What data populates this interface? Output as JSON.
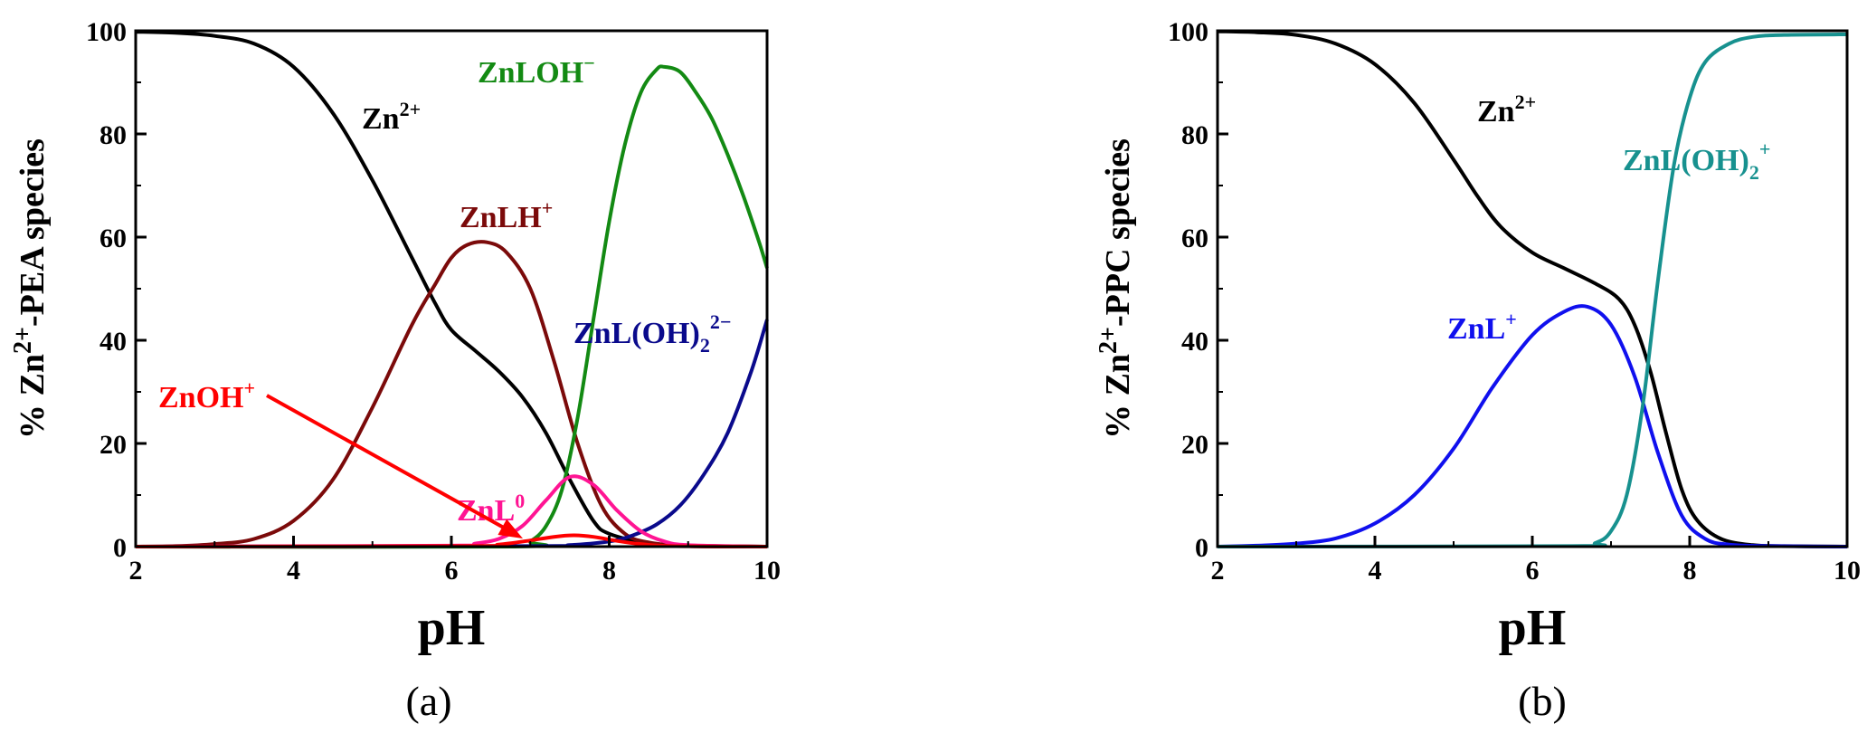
{
  "chart_data": [
    {
      "type": "line",
      "panel_label": "(a)",
      "xlabel": "pH",
      "ylabel_parts": {
        "prefix": "% Zn",
        "sup": "2+",
        "suffix": "-PEA species"
      },
      "xlim": [
        2,
        10
      ],
      "ylim": [
        0,
        100
      ],
      "x_ticks": [
        2,
        4,
        6,
        8,
        10
      ],
      "y_ticks": [
        0,
        20,
        40,
        60,
        80,
        100
      ],
      "grid": false,
      "series": [
        {
          "label_base": "Zn",
          "label_sup": "2+",
          "label_sub": "",
          "color": "#000000",
          "x": [
            2,
            2.5,
            3,
            3.5,
            4,
            4.5,
            5,
            5.5,
            5.8,
            6,
            6.3,
            6.6,
            6.9,
            7.2,
            7.5,
            7.8,
            8,
            8.5,
            9,
            10
          ],
          "y": [
            99.8,
            99.6,
            99,
            97.5,
            93,
            84,
            71,
            56,
            47,
            42,
            38,
            34,
            29,
            22,
            13,
            5,
            2.5,
            0.6,
            0.2,
            0
          ]
        },
        {
          "label_base": "ZnLH",
          "label_sup": "+",
          "label_sub": "",
          "color": "#7b0a0a",
          "x": [
            2,
            2.5,
            3,
            3.5,
            4,
            4.5,
            5,
            5.5,
            5.8,
            6,
            6.2,
            6.45,
            6.7,
            7,
            7.3,
            7.6,
            7.9,
            8.2,
            8.5,
            9,
            10
          ],
          "y": [
            0,
            0.1,
            0.5,
            1.5,
            5,
            13,
            27,
            43,
            51,
            56,
            58.5,
            59,
            57,
            50,
            36,
            20,
            8,
            2.5,
            0.8,
            0.1,
            0
          ]
        },
        {
          "label_base": "ZnLOH",
          "label_sup": "−",
          "label_sub": "",
          "color": "#138a13",
          "x": [
            2,
            6.8,
            7,
            7.2,
            7.4,
            7.6,
            7.8,
            8,
            8.2,
            8.4,
            8.6,
            8.7,
            8.9,
            9.1,
            9.3,
            9.5,
            9.7,
            9.9,
            10
          ],
          "y": [
            0,
            0,
            1,
            4,
            11,
            25,
            44,
            63,
            78,
            88,
            92.5,
            93,
            92,
            88,
            83,
            76,
            68,
            59,
            54
          ]
        },
        {
          "label_base": "ZnL(OH)",
          "label_sup": "2−",
          "label_sub": "2",
          "color": "#0a0a8c",
          "x": [
            2,
            7,
            7.5,
            8,
            8.3,
            8.6,
            8.9,
            9.2,
            9.5,
            9.8,
            10
          ],
          "y": [
            0,
            0.1,
            0.3,
            1,
            2.2,
            4.3,
            8,
            14,
            22,
            34,
            44
          ]
        },
        {
          "label_base": "ZnL",
          "label_sup": "0",
          "label_sub": "",
          "color": "#ff1493",
          "x": [
            2,
            6,
            6.3,
            6.6,
            6.9,
            7.2,
            7.5,
            7.8,
            8.1,
            8.4,
            8.7,
            9,
            10
          ],
          "y": [
            0,
            0.2,
            0.6,
            1.5,
            4,
            9,
            13.5,
            12,
            7,
            3,
            1,
            0.3,
            0
          ]
        },
        {
          "label_base": "ZnOH",
          "label_sup": "+",
          "label_sub": "",
          "color": "#ff0000",
          "x": [
            2,
            6.2,
            6.6,
            7,
            7.3,
            7.55,
            7.8,
            8.1,
            8.4,
            8.8,
            10
          ],
          "y": [
            0,
            0.1,
            0.4,
            1.2,
            1.9,
            2.2,
            1.9,
            1.1,
            0.5,
            0.1,
            0
          ]
        }
      ]
    },
    {
      "type": "line",
      "panel_label": "(b)",
      "xlabel": "pH",
      "ylabel_parts": {
        "prefix": "% Zn",
        "sup": "2+",
        "suffix": "-PPC species"
      },
      "xlim": [
        2,
        10
      ],
      "ylim": [
        0,
        100
      ],
      "x_ticks": [
        2,
        4,
        6,
        8,
        10
      ],
      "y_ticks": [
        0,
        20,
        40,
        60,
        80,
        100
      ],
      "grid": false,
      "series": [
        {
          "label_base": "Zn",
          "label_sup": "2+",
          "label_sub": "",
          "color": "#000000",
          "x": [
            2,
            2.5,
            3,
            3.5,
            4,
            4.5,
            5,
            5.3,
            5.6,
            6,
            6.4,
            6.8,
            7.1,
            7.3,
            7.5,
            7.7,
            7.9,
            8.1,
            8.4,
            8.8,
            9.2,
            10
          ],
          "y": [
            99.9,
            99.7,
            99.2,
            97.5,
            93.5,
            86,
            75,
            68,
            62,
            57,
            54,
            51,
            48,
            43,
            34,
            22,
            11,
            5,
            1.5,
            0.3,
            0.1,
            0
          ]
        },
        {
          "label_base": "ZnL",
          "label_sup": "+",
          "label_sub": "",
          "color": "#1010ee",
          "x": [
            2,
            2.5,
            3,
            3.5,
            4,
            4.5,
            5,
            5.5,
            6,
            6.4,
            6.7,
            7,
            7.3,
            7.6,
            7.9,
            8.2,
            8.5,
            9,
            10
          ],
          "y": [
            0,
            0.2,
            0.6,
            1.6,
            4.5,
            10,
            19,
            31,
            41,
            45.5,
            46.5,
            43,
            33,
            18,
            6,
            1.5,
            0.4,
            0.1,
            0
          ]
        },
        {
          "label_base": "ZnL(OH)",
          "label_sup": "+",
          "label_sub": "2",
          "color": "#17918f",
          "x": [
            2,
            6.5,
            6.8,
            7,
            7.2,
            7.4,
            7.6,
            7.8,
            8,
            8.2,
            8.5,
            8.8,
            9.2,
            10
          ],
          "y": [
            0,
            0.1,
            0.7,
            3,
            10,
            27,
            52,
            74,
            87,
            94,
            97.5,
            98.8,
            99.2,
            99.3
          ]
        }
      ]
    }
  ]
}
